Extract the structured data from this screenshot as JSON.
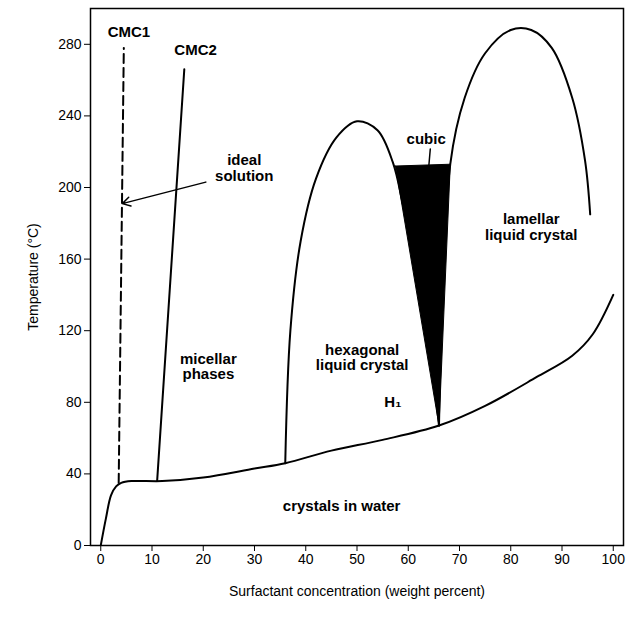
{
  "chart_data": {
    "type": "line",
    "xlabel": "Surfactant concentration (weight percent)",
    "ylabel": "Temperature (°C)",
    "xlim": [
      -2,
      102
    ],
    "ylim": [
      0,
      300
    ],
    "xticks": [
      0,
      10,
      20,
      30,
      40,
      50,
      60,
      70,
      80,
      90,
      100
    ],
    "yticks": [
      0,
      40,
      80,
      120,
      160,
      200,
      240,
      280
    ],
    "grid": false,
    "series": [
      {
        "color": "#000000",
        "line_style": "solid",
        "x": [
          0,
          1,
          2,
          3,
          4,
          6,
          12,
          20,
          30,
          36,
          45,
          55,
          66,
          75,
          85,
          92,
          96,
          100
        ],
        "values": [
          0,
          15,
          28,
          33,
          35,
          36,
          36,
          38,
          43,
          46,
          53,
          59,
          67,
          78,
          94,
          106,
          118,
          140
        ]
      },
      {
        "color": "#000000",
        "line_style": "dashed",
        "x": [
          3.5,
          4.5
        ],
        "values": [
          35,
          278
        ]
      },
      {
        "color": "#000000",
        "line_style": "solid",
        "x": [
          11,
          16.3
        ],
        "values": [
          36,
          266
        ]
      },
      {
        "color": "#000000",
        "line_style": "solid",
        "x": [
          36,
          37,
          39,
          42,
          46,
          50,
          54,
          57,
          59,
          62,
          64,
          66
        ],
        "values": [
          46,
          120,
          170,
          205,
          228,
          237,
          232,
          214,
          190,
          150,
          115,
          67
        ]
      },
      {
        "color": "#000000",
        "line_style": "solid",
        "x": [
          66,
          68.2,
          71,
          75,
          80,
          84,
          88,
          92,
          94.5,
          95.5
        ],
        "values": [
          67,
          213,
          250,
          275,
          288,
          288,
          278,
          250,
          215,
          185
        ]
      },
      {
        "type": "area",
        "color": "#000000",
        "x": [
          57.5,
          68.2,
          66,
          57.5
        ],
        "values": [
          212,
          213,
          67,
          212
        ]
      }
    ],
    "annotations": [
      {
        "text": "CMC1",
        "x": 5.5,
        "y": 287
      },
      {
        "text": "CMC2",
        "x": 18.5,
        "y": 277
      },
      {
        "text": "ideal\nsolution",
        "x": 28,
        "y": 211,
        "arrow": {
          "from": [
            20.5,
            203
          ],
          "to": [
            4.2,
            191
          ]
        }
      },
      {
        "text": "micellar\nphases",
        "x": 21,
        "y": 100
      },
      {
        "text": "hexagonal\nliquid crystal",
        "x": 51,
        "y": 105
      },
      {
        "text": "H₁",
        "x": 57,
        "y": 80
      },
      {
        "text": "cubic",
        "x": 63.5,
        "y": 227,
        "arrow": {
          "from": [
            64.3,
            221.5
          ],
          "to": [
            63.8,
            205
          ]
        }
      },
      {
        "text": "lamellar\nliquid crystal",
        "x": 84,
        "y": 178
      },
      {
        "text": "crystals in water",
        "x": 47,
        "y": 22
      }
    ]
  }
}
